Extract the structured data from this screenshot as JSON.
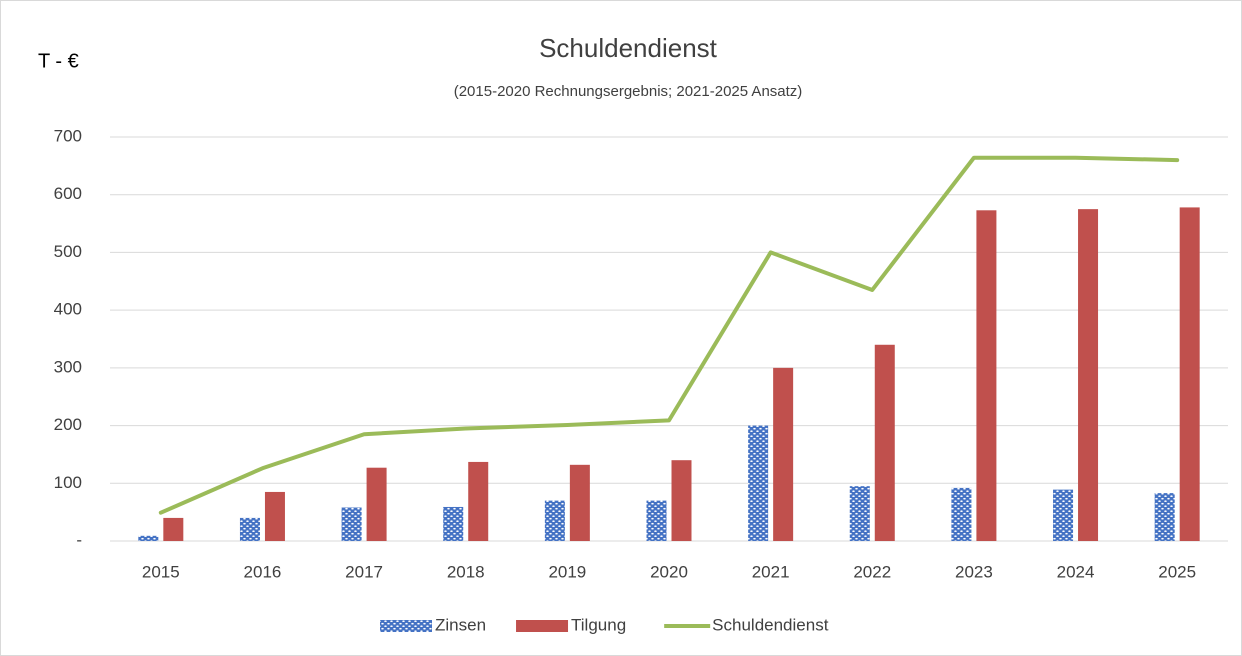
{
  "chart_data": {
    "type": "bar",
    "title": "Schuldendienst",
    "subtitle": "(2015-2020 Rechnungsergebnis; 2021-2025 Ansatz)",
    "y_label": "T - €",
    "categories": [
      "2015",
      "2016",
      "2017",
      "2018",
      "2019",
      "2020",
      "2021",
      "2022",
      "2023",
      "2024",
      "2025"
    ],
    "series": [
      {
        "name": "Zinsen",
        "type": "bar",
        "color": "#4472c4",
        "pattern": "dotted",
        "values": [
          9,
          40,
          58,
          59,
          70,
          70,
          200,
          95,
          92,
          89,
          83
        ]
      },
      {
        "name": "Tilgung",
        "type": "bar",
        "color": "#c0504d",
        "values": [
          40,
          85,
          127,
          137,
          132,
          140,
          300,
          340,
          573,
          575,
          578
        ]
      },
      {
        "name": "Schuldendienst",
        "type": "line",
        "color": "#9bbb59",
        "values": [
          49,
          126,
          185,
          195,
          201,
          209,
          500,
          435,
          664,
          664,
          660
        ]
      }
    ],
    "ylim": [
      0,
      700
    ],
    "yticks": [
      {
        "value": 0,
        "label": "-"
      },
      100,
      200,
      300,
      400,
      500,
      600,
      700
    ],
    "grid": true,
    "legend": "bottom"
  }
}
